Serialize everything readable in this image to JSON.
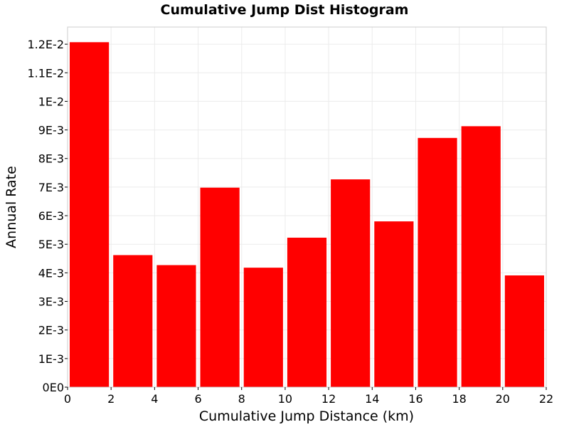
{
  "chart_data": {
    "type": "bar",
    "title": "Cumulative Jump Dist Histogram",
    "xlabel": "Cumulative Jump Distance (km)",
    "ylabel": "Annual Rate",
    "xlim": [
      0,
      22
    ],
    "ylim": [
      0,
      0.0126
    ],
    "x_ticks": [
      0,
      2,
      4,
      6,
      8,
      10,
      12,
      14,
      16,
      18,
      20,
      22
    ],
    "x_tick_labels": [
      "0",
      "2",
      "4",
      "6",
      "8",
      "10",
      "12",
      "14",
      "16",
      "18",
      "20",
      "22"
    ],
    "y_ticks": [
      0,
      0.001,
      0.002,
      0.003,
      0.004,
      0.005,
      0.006,
      0.007,
      0.008,
      0.009,
      0.01,
      0.011,
      0.012
    ],
    "y_tick_labels": [
      "0E0",
      "1E-3",
      "2E-3",
      "3E-3",
      "4E-3",
      "5E-3",
      "6E-3",
      "7E-3",
      "8E-3",
      "9E-3",
      "1E-2",
      "1.1E-2",
      "1.2E-2"
    ],
    "bin_width": 2,
    "bin_starts": [
      0,
      2,
      4,
      6,
      8,
      10,
      12,
      14,
      16,
      18,
      20
    ],
    "values": [
      0.01207,
      0.00462,
      0.00427,
      0.00698,
      0.00418,
      0.00523,
      0.00727,
      0.0058,
      0.00872,
      0.00913,
      0.00391
    ],
    "grid": true,
    "bar_color": "#ff0000",
    "grid_color": "#ebebeb",
    "frame_color": "#cccccc"
  }
}
